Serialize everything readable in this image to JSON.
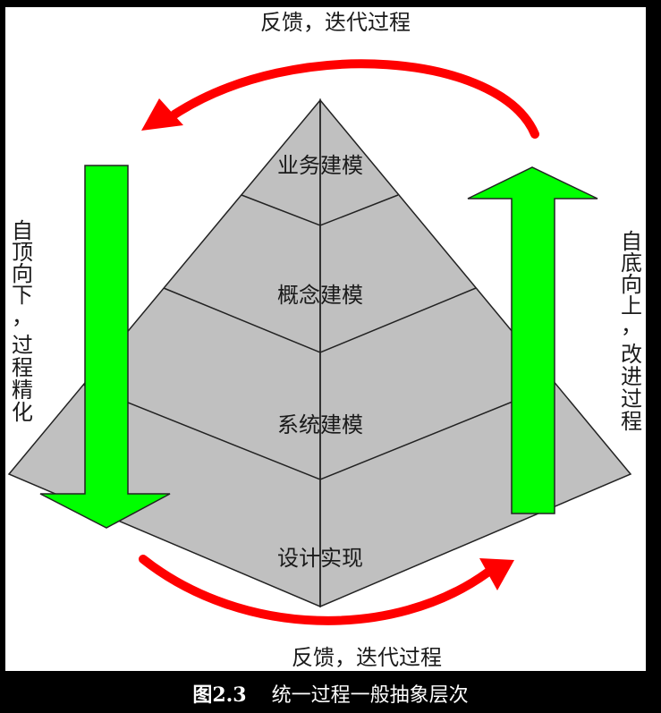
{
  "diagram": {
    "layers": [
      {
        "label": "业务建模"
      },
      {
        "label": "概念建模"
      },
      {
        "label": "系统建模"
      },
      {
        "label": "设计实现"
      }
    ],
    "feedback_top": "反馈，迭代过程",
    "feedback_bottom": "反馈，迭代过程",
    "left_side": [
      "自",
      "顶",
      "向",
      "下",
      "，",
      "过",
      "程",
      "精",
      "化"
    ],
    "right_side": [
      "自",
      "底",
      "向",
      "上",
      "，",
      "改",
      "进",
      "过",
      "程"
    ],
    "colors": {
      "pyramid_fill": "#c0c0c0",
      "pyramid_stroke": "#222222",
      "arrow_green": "#00ff00",
      "arrow_red": "#ff0000",
      "panel": "#ffffff"
    }
  },
  "caption": {
    "number": "图2.3",
    "title": "统一过程一般抽象层次"
  }
}
